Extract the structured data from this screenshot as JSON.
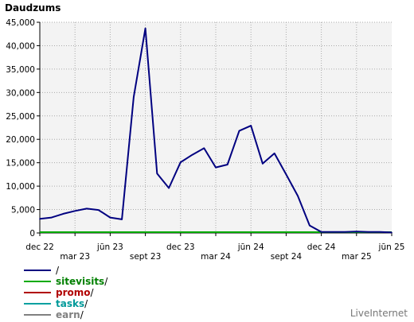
{
  "chart_data": {
    "type": "line",
    "title": "Daudzums",
    "x_tick_labels": [
      "dec 22",
      "mar 23",
      "jūn 23",
      "sept 23",
      "dec 23",
      "mar 24",
      "jūn 24",
      "sept 24",
      "dec 24",
      "mar 25",
      "jūn 25"
    ],
    "y_tick_labels": [
      "0",
      "5,000",
      "10,000",
      "15,000",
      "20,000",
      "25,000",
      "30,000",
      "35,000",
      "40,000",
      "45,000"
    ],
    "ylim": [
      0,
      45000
    ],
    "grid": true,
    "legend_position": "bottom-left",
    "series": [
      {
        "name": "/",
        "color": "#000080",
        "values": [
          3000,
          3300,
          4100,
          4700,
          5200,
          4900,
          3300,
          2900,
          29000,
          43700,
          12700,
          9600,
          15100,
          16700,
          18100,
          14000,
          14600,
          21800,
          22900,
          14800,
          17000,
          12500,
          7900,
          1600,
          200,
          200,
          200,
          300,
          200,
          200,
          100
        ]
      },
      {
        "name": "sitevisits",
        "color": "#008000",
        "values": []
      },
      {
        "name": "promo",
        "color": "#b00000",
        "values": []
      },
      {
        "name": "tasks",
        "color": "#009999",
        "values": []
      },
      {
        "name": "earn",
        "color": "#808080",
        "values": []
      }
    ]
  },
  "legend": {
    "items": [
      {
        "label": "",
        "color": "#000080",
        "line": "#000080"
      },
      {
        "label": "sitevisits",
        "color": "#008000",
        "line": "#00aa00"
      },
      {
        "label": "promo",
        "color": "#b00000",
        "line": "#b00000"
      },
      {
        "label": "tasks",
        "color": "#009999",
        "line": "#00a0a0"
      },
      {
        "label": "earn",
        "color": "#808080",
        "line": "#808080"
      }
    ],
    "slash": "/"
  },
  "brand": "LiveInternet"
}
